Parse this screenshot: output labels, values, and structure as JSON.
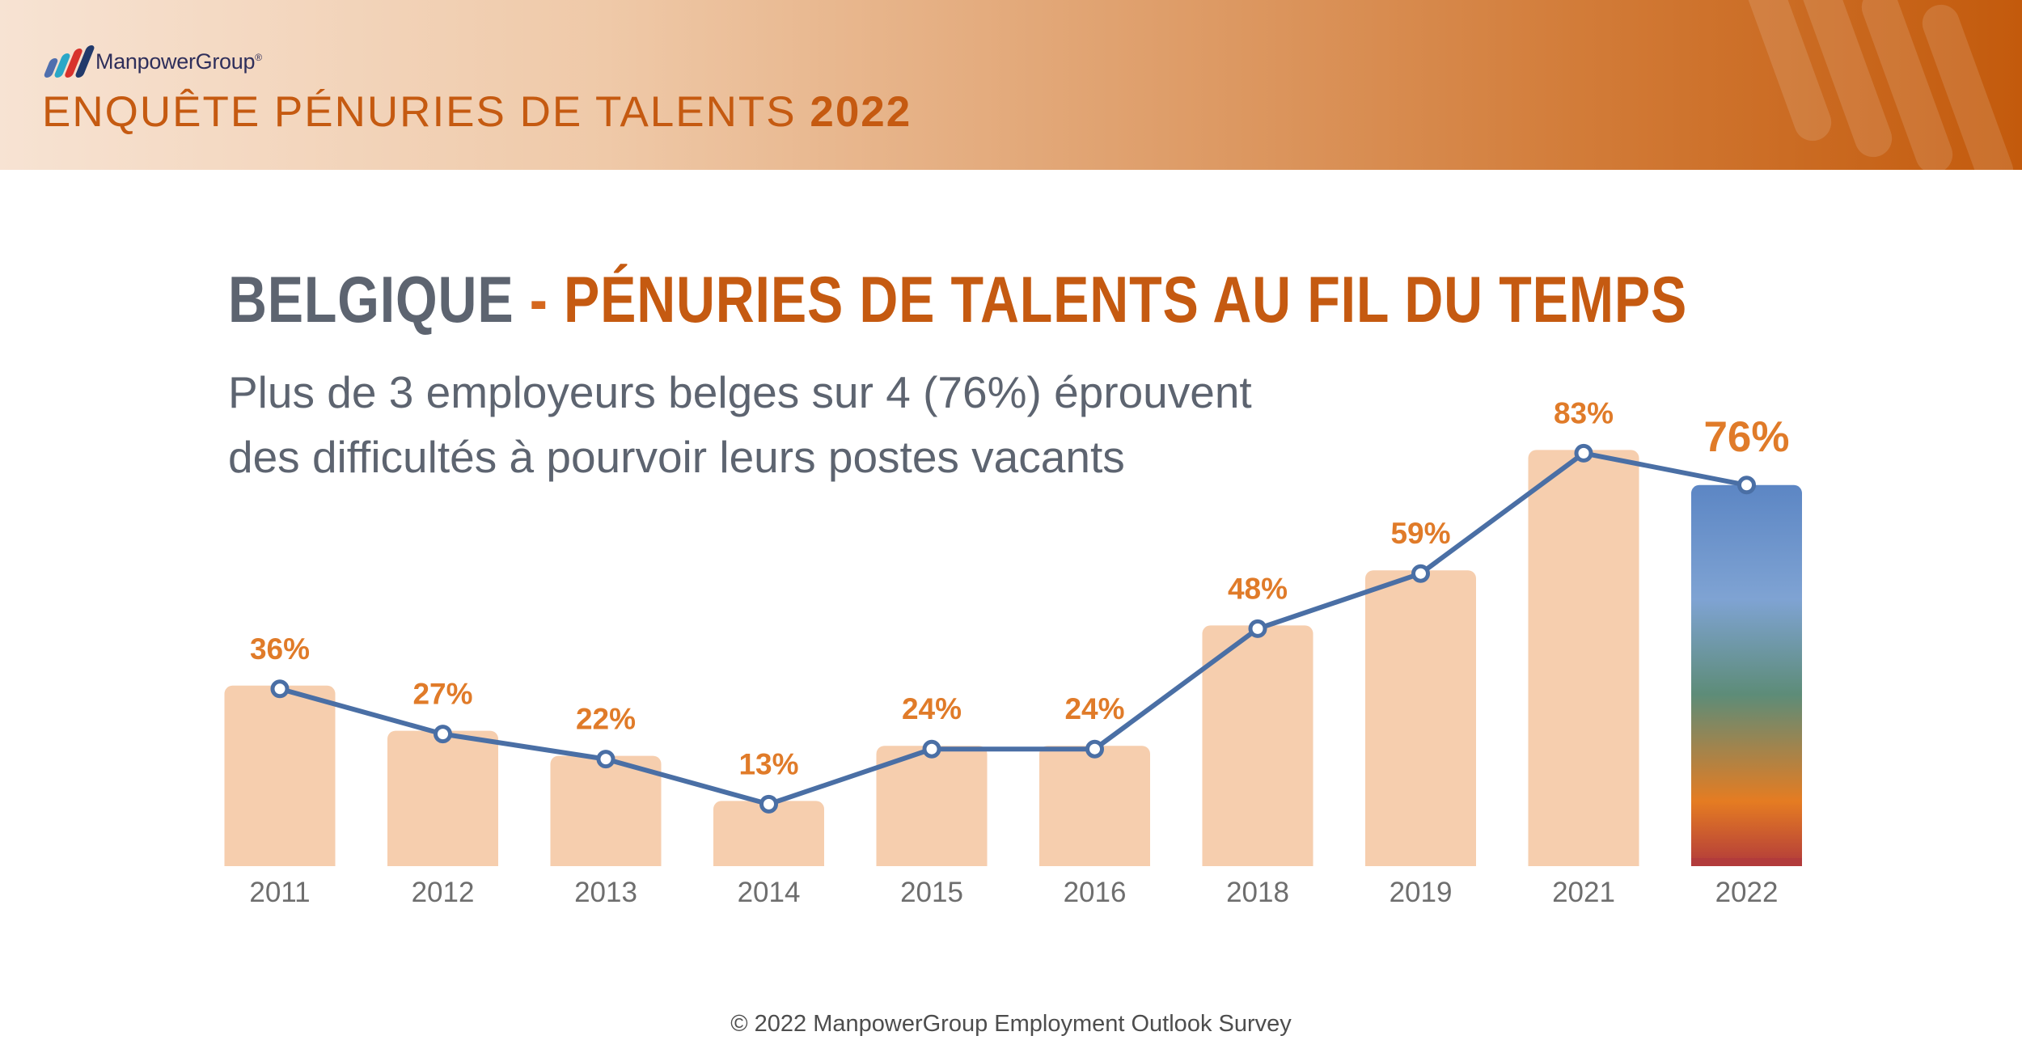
{
  "brand": {
    "name": "ManpowerGroup",
    "trademark": "®",
    "mark_colors": [
      "#4f6fae",
      "#2aa7c7",
      "#d8322c",
      "#213a6b"
    ]
  },
  "header": {
    "title_prefix": "ENQUÊTE PÉNURIES DE TALENTS",
    "title_year": "2022"
  },
  "heading": {
    "country": "BELGIQUE",
    "separator": " - ",
    "title": "PÉNURIES DE TALENTS AU FIL DU TEMPS"
  },
  "subtitle": {
    "line1": "Plus de 3 employeurs belges sur 4 (76%) éprouvent",
    "line2": "des difficultés à pourvoir leurs postes vacants"
  },
  "colors": {
    "bar": "#f6ceae",
    "line": "#4a6fa5",
    "label": "#e07b29",
    "axis_text": "#6e6e6e",
    "highlight_gradient": [
      "#5c86c4",
      "#7fa3d3",
      "#5d8c78",
      "#e57c22",
      "#b23b3b"
    ]
  },
  "chart_data": {
    "type": "bar",
    "categories": [
      "2011",
      "2012",
      "2013",
      "2014",
      "2015",
      "2016",
      "2018",
      "2019",
      "2021",
      "2022"
    ],
    "values": [
      36,
      27,
      22,
      13,
      24,
      24,
      48,
      59,
      83,
      76
    ],
    "labels": [
      "36%",
      "27%",
      "22%",
      "13%",
      "24%",
      "24%",
      "48%",
      "59%",
      "83%",
      "76%"
    ],
    "overlay": "line",
    "highlight_index": 9,
    "ylim": [
      0,
      100
    ],
    "grid": false,
    "legend": "none",
    "xlabel": "",
    "ylabel": "",
    "title": "BELGIQUE - PÉNURIES DE TALENTS AU FIL DU TEMPS"
  },
  "footer": {
    "text": "© 2022 ManpowerGroup Employment Outlook Survey"
  }
}
